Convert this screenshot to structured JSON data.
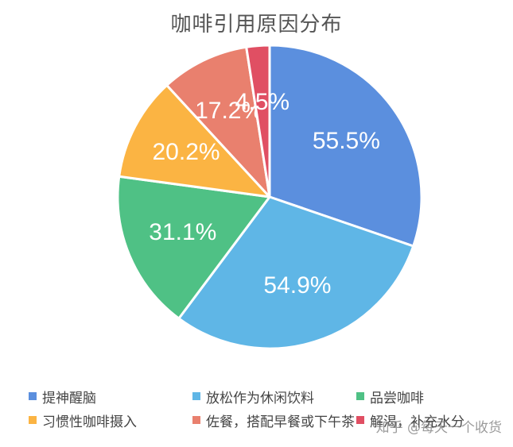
{
  "chart_data": {
    "type": "pie",
    "title": "咖啡引用原因分布",
    "categories": [
      "提神醒脑",
      "放松作为休闲饮料",
      "品尝咖啡",
      "习惯性咖啡摄入",
      "佐餐，搭配早餐或下午茶",
      "解渴，补充水分"
    ],
    "values": [
      55.5,
      54.9,
      31.1,
      20.2,
      17.2,
      4.5
    ],
    "labels": [
      "55.5%",
      "54.9%",
      "31.1%",
      "20.2%",
      "17.2%",
      "4.5%"
    ],
    "colors": [
      "#5b8fde",
      "#5fb6e6",
      "#4fc185",
      "#fbb443",
      "#e9806e",
      "#e04f63"
    ],
    "legend_position": "bottom"
  },
  "watermark": "知乎 @每天一个收货"
}
